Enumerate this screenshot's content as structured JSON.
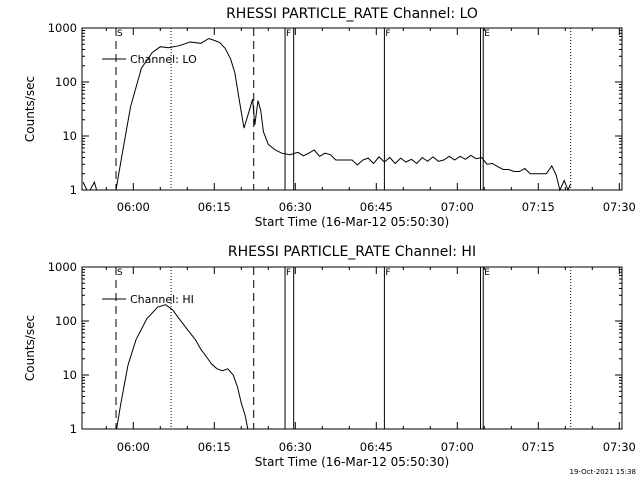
{
  "chart_data": [
    {
      "type": "line",
      "title": "RHESSI PARTICLE_RATE Channel: LO",
      "xlabel": "Start Time (16-Mar-12 05:50:30)",
      "ylabel": "Counts/sec",
      "yscale": "log",
      "ylim": [
        1,
        1000
      ],
      "xlim_minutes": [
        0,
        100
      ],
      "x_tick_labels": [
        "06:00",
        "06:15",
        "06:30",
        "06:45",
        "07:00",
        "07:15",
        "07:30"
      ],
      "x_tick_minutes": [
        9.5,
        24.5,
        39.5,
        54.5,
        69.5,
        84.5,
        99.5
      ],
      "y_tick_labels": [
        "1",
        "10",
        "100",
        "1000"
      ],
      "y_tick_values": [
        1,
        10,
        100,
        1000
      ],
      "legend": "Channel: LO",
      "flags": [
        {
          "label": "S",
          "minute": 6.3,
          "style": "dashed"
        },
        {
          "label": "",
          "minute": 16.5,
          "style": "dotted"
        },
        {
          "label": "",
          "minute": 31.8,
          "style": "dashed"
        },
        {
          "label": "F",
          "minute": 37.6,
          "style": "solid"
        },
        {
          "label": "",
          "minute": 39.2,
          "style": "solid"
        },
        {
          "label": "F",
          "minute": 56.0,
          "style": "solid"
        },
        {
          "label": "",
          "minute": 73.8,
          "style": "solid"
        },
        {
          "label": "E",
          "minute": 74.3,
          "style": "solid"
        },
        {
          "label": "",
          "minute": 90.5,
          "style": "dotted"
        }
      ],
      "series": [
        {
          "name": "Channel: LO",
          "x": [
            0.2,
            0.9,
            1.5,
            2.3,
            2.7,
            3.2,
            6.3,
            6.6,
            7.5,
            9,
            11,
            13,
            14.5,
            16,
            18,
            20,
            22,
            23.5,
            24.5,
            25.5,
            26.5,
            27.5,
            28.3,
            29,
            30,
            31,
            31.6,
            32,
            32.6,
            33.1,
            33.6,
            34.5,
            35.8,
            37,
            38.5,
            40,
            41,
            42,
            43,
            44,
            45,
            46,
            47,
            48,
            49,
            50,
            51,
            52,
            53,
            54,
            55,
            56,
            57,
            58,
            59,
            60,
            61,
            62,
            63,
            64,
            65,
            66,
            67,
            68,
            69,
            70,
            71,
            72,
            73,
            74,
            75,
            76,
            77,
            78,
            79,
            80,
            81,
            82,
            83,
            84,
            85,
            86,
            87,
            87.8,
            88.5,
            89.3,
            90,
            90.5
          ],
          "values": [
            1.4,
            1.0,
            1.0,
            1.4,
            1.0,
            1.0,
            1.0,
            1.5,
            5,
            35,
            180,
            350,
            450,
            430,
            470,
            550,
            520,
            640,
            590,
            540,
            420,
            270,
            150,
            55,
            14,
            30,
            48,
            16,
            45,
            30,
            12,
            7,
            5.5,
            4.8,
            4.5,
            5,
            4.3,
            4.8,
            5.5,
            4.2,
            4.8,
            4.5,
            3.6,
            3.6,
            3.6,
            3.6,
            2.9,
            3.6,
            3.9,
            3.1,
            4.1,
            3.3,
            4.0,
            3.1,
            3.9,
            3.3,
            3.7,
            3.1,
            4.0,
            3.4,
            4.1,
            3.4,
            3.6,
            4.2,
            3.6,
            4.2,
            3.7,
            4.4,
            3.8,
            4.0,
            3.0,
            3.1,
            2.7,
            2.4,
            2.4,
            2.2,
            2.2,
            2.5,
            2.0,
            2.0,
            2.0,
            2.0,
            2.8,
            1.9,
            1.0,
            1.5,
            1.0,
            1.3
          ]
        }
      ]
    },
    {
      "type": "line",
      "title": "RHESSI PARTICLE_RATE Channel: HI",
      "xlabel": "Start Time (16-Mar-12 05:50:30)",
      "ylabel": "Counts/sec",
      "yscale": "log",
      "ylim": [
        1,
        1000
      ],
      "xlim_minutes": [
        0,
        100
      ],
      "x_tick_labels": [
        "06:00",
        "06:15",
        "06:30",
        "06:45",
        "07:00",
        "07:15",
        "07:30"
      ],
      "x_tick_minutes": [
        9.5,
        24.5,
        39.5,
        54.5,
        69.5,
        84.5,
        99.5
      ],
      "y_tick_labels": [
        "1",
        "10",
        "100",
        "1000"
      ],
      "y_tick_values": [
        1,
        10,
        100,
        1000
      ],
      "legend": "Channel: HI",
      "flags": [
        {
          "label": "S",
          "minute": 6.3,
          "style": "dashed"
        },
        {
          "label": "",
          "minute": 16.5,
          "style": "dotted"
        },
        {
          "label": "",
          "minute": 31.8,
          "style": "dashed"
        },
        {
          "label": "F",
          "minute": 37.6,
          "style": "solid"
        },
        {
          "label": "",
          "minute": 39.2,
          "style": "solid"
        },
        {
          "label": "F",
          "minute": 56.0,
          "style": "solid"
        },
        {
          "label": "",
          "minute": 73.8,
          "style": "solid"
        },
        {
          "label": "E",
          "minute": 74.3,
          "style": "solid"
        },
        {
          "label": "",
          "minute": 90.5,
          "style": "dotted"
        }
      ],
      "series": [
        {
          "name": "Channel: HI",
          "x": [
            6.4,
            7.2,
            8.5,
            10,
            12,
            14,
            15.5,
            16.8,
            18,
            19.5,
            21,
            22,
            23,
            24,
            25,
            26,
            27,
            28,
            28.8,
            29.5,
            30.2,
            30.7
          ],
          "values": [
            1.0,
            3,
            15,
            45,
            110,
            180,
            200,
            160,
            110,
            70,
            45,
            30,
            22,
            16,
            13,
            12,
            13,
            10,
            6,
            3,
            1.8,
            1.0
          ]
        }
      ]
    }
  ],
  "footer": {
    "stamp": "19-Oct-2021 15:38"
  }
}
